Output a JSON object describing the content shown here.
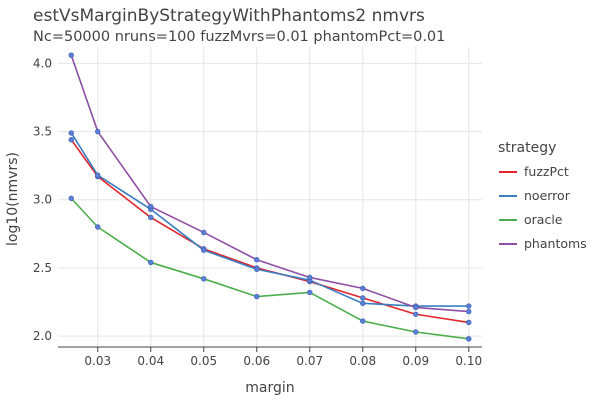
{
  "chart_data": {
    "type": "line",
    "title": "estVsMarginByStrategyWithPhantoms2 nmvrs",
    "subtitle": "Nc=50000 nruns=100 fuzzMvrs=0.01 phantomPct=0.01",
    "xlabel": "margin",
    "ylabel": "log10(nmvrs)",
    "xlim": [
      0.0225,
      0.1025
    ],
    "ylim": [
      1.92,
      4.12
    ],
    "x_ticks": [
      0.03,
      0.04,
      0.05,
      0.06,
      0.07,
      0.08,
      0.09,
      0.1
    ],
    "x_tick_labels": [
      "0.03",
      "0.04",
      "0.05",
      "0.06",
      "0.07",
      "0.08",
      "0.09",
      "0.10"
    ],
    "y_ticks": [
      2.0,
      2.5,
      3.0,
      3.5,
      4.0
    ],
    "y_tick_labels": [
      "2.0",
      "2.5",
      "3.0",
      "3.5",
      "4.0"
    ],
    "grid": true,
    "legend": {
      "title": "strategy",
      "position": "right"
    },
    "marker_color": "#5b7fd6",
    "x": [
      0.025,
      0.03,
      0.04,
      0.05,
      0.06,
      0.07,
      0.08,
      0.09,
      0.1
    ],
    "series": [
      {
        "name": "fuzzPct",
        "color": "#e0262b",
        "values": [
          3.44,
          3.17,
          2.87,
          2.64,
          2.5,
          2.4,
          2.28,
          2.16,
          2.1
        ]
      },
      {
        "name": "noerror",
        "color": "#3a7fc1",
        "values": [
          3.49,
          3.18,
          2.93,
          2.63,
          2.49,
          2.41,
          2.24,
          2.22,
          2.22
        ]
      },
      {
        "name": "oracle",
        "color": "#4cae4c",
        "values": [
          3.01,
          2.8,
          2.54,
          2.42,
          2.29,
          2.32,
          2.11,
          2.03,
          1.98
        ]
      },
      {
        "name": "phantoms",
        "color": "#8e4ea5",
        "values": [
          4.06,
          3.5,
          2.95,
          2.76,
          2.56,
          2.43,
          2.35,
          2.21,
          2.18
        ]
      }
    ]
  }
}
